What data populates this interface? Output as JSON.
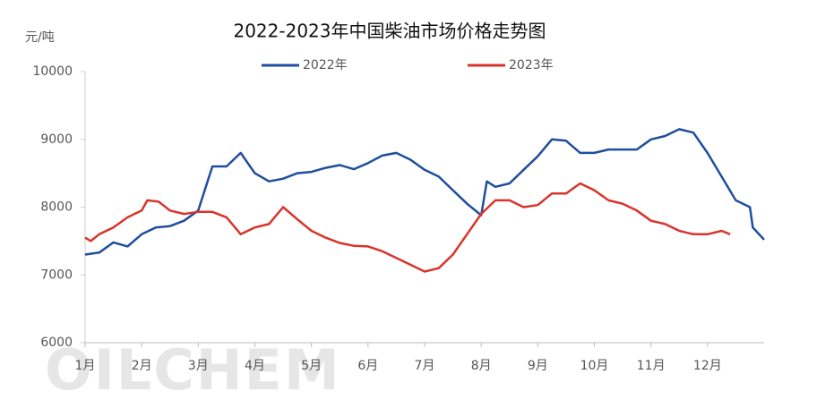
{
  "chart_data": {
    "type": "line",
    "title": "2022-2023年中国柴油市场价格走势图",
    "y_label": "元/吨",
    "watermark": "OILCHEM",
    "xlim": [
      1,
      13
    ],
    "xticks": [
      {
        "value": 1,
        "label": "1月"
      },
      {
        "value": 2,
        "label": "2月"
      },
      {
        "value": 3,
        "label": "3月"
      },
      {
        "value": 4,
        "label": "4月"
      },
      {
        "value": 5,
        "label": "5月"
      },
      {
        "value": 6,
        "label": "6月"
      },
      {
        "value": 7,
        "label": "7月"
      },
      {
        "value": 8,
        "label": "8月"
      },
      {
        "value": 9,
        "label": "9月"
      },
      {
        "value": 10,
        "label": "10月"
      },
      {
        "value": 11,
        "label": "11月"
      },
      {
        "value": 12,
        "label": "12月"
      }
    ],
    "ylim": [
      6000,
      10000
    ],
    "yticks": [
      6000,
      7000,
      8000,
      9000,
      10000
    ],
    "series": [
      {
        "name": "2022年",
        "color": "#1f4e9c",
        "x": [
          1,
          1.25,
          1.5,
          1.75,
          2,
          2.25,
          2.5,
          2.75,
          3,
          3.25,
          3.5,
          3.75,
          4,
          4.25,
          4.5,
          4.75,
          5,
          5.25,
          5.5,
          5.75,
          6,
          6.25,
          6.5,
          6.75,
          7,
          7.25,
          7.5,
          7.75,
          8,
          8.1,
          8.25,
          8.5,
          8.75,
          9,
          9.25,
          9.5,
          9.75,
          10,
          10.25,
          10.5,
          10.75,
          11,
          11.25,
          11.5,
          11.75,
          12,
          12.25,
          12.5,
          12.75,
          12.8,
          13
        ],
        "values": [
          7300,
          7330,
          7480,
          7420,
          7600,
          7700,
          7720,
          7800,
          7950,
          8600,
          8600,
          8800,
          8500,
          8380,
          8420,
          8500,
          8520,
          8580,
          8620,
          8560,
          8650,
          8760,
          8800,
          8700,
          8550,
          8450,
          8250,
          8050,
          7880,
          8380,
          8300,
          8350,
          8550,
          8750,
          9000,
          8980,
          8800,
          8800,
          8850,
          8850,
          8850,
          9000,
          9050,
          9150,
          9100,
          8800,
          8450,
          8100,
          8000,
          7700,
          7520
        ]
      },
      {
        "name": "2023年",
        "color": "#d9342b",
        "x": [
          1,
          1.1,
          1.25,
          1.5,
          1.75,
          2,
          2.1,
          2.3,
          2.5,
          2.75,
          3,
          3.25,
          3.5,
          3.75,
          4,
          4.25,
          4.5,
          4.75,
          5,
          5.25,
          5.5,
          5.75,
          6,
          6.25,
          6.5,
          6.75,
          7,
          7.25,
          7.5,
          7.75,
          8,
          8.25,
          8.5,
          8.75,
          9,
          9.25,
          9.5,
          9.75,
          10,
          10.25,
          10.5,
          10.75,
          11,
          11.25,
          11.5,
          11.75,
          12,
          12.25,
          12.4
        ],
        "values": [
          7550,
          7500,
          7600,
          7700,
          7850,
          7950,
          8100,
          8080,
          7950,
          7900,
          7930,
          7930,
          7850,
          7600,
          7700,
          7750,
          8000,
          7820,
          7650,
          7550,
          7470,
          7430,
          7420,
          7350,
          7250,
          7150,
          7050,
          7100,
          7300,
          7600,
          7900,
          8100,
          8100,
          8000,
          8030,
          8200,
          8200,
          8350,
          8250,
          8100,
          8050,
          7950,
          7800,
          7750,
          7650,
          7600,
          7600,
          7650,
          7600
        ]
      }
    ]
  }
}
